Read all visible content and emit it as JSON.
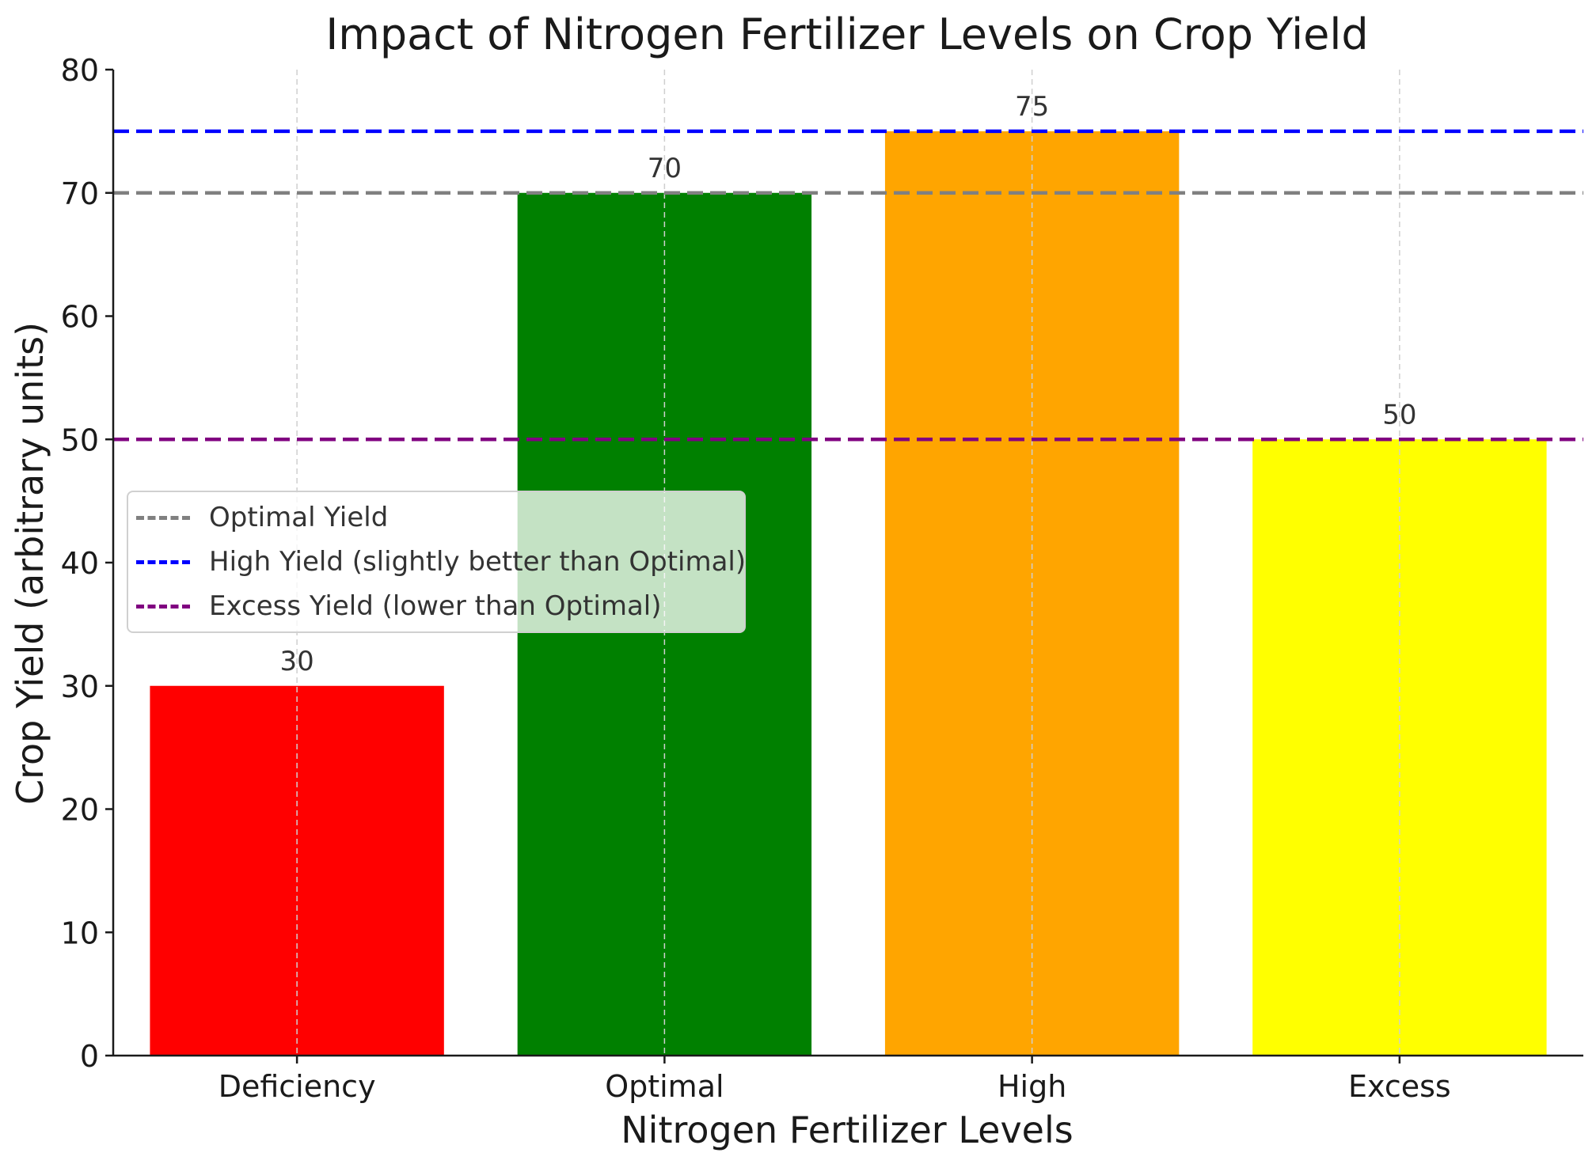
{
  "chart_data": {
    "type": "bar",
    "title": "Impact of Nitrogen Fertilizer Levels on Crop Yield",
    "xlabel": "Nitrogen Fertilizer Levels",
    "ylabel": "Crop Yield (arbitrary units)",
    "categories": [
      "Deficiency",
      "Optimal",
      "High",
      "Excess"
    ],
    "values": [
      30,
      70,
      75,
      50
    ],
    "value_labels": [
      "30",
      "70",
      "75",
      "50"
    ],
    "bar_colors": [
      "#ff0000",
      "#008000",
      "#ffa500",
      "#ffff00"
    ],
    "ylim": [
      0,
      80
    ],
    "yticks": [
      0,
      10,
      20,
      30,
      40,
      50,
      60,
      70,
      80
    ],
    "ytick_labels": [
      "0",
      "10",
      "20",
      "30",
      "40",
      "50",
      "60",
      "70",
      "80"
    ],
    "grid": "x-axis, dashed",
    "reference_lines": [
      {
        "name": "Optimal Yield",
        "value": 70,
        "color": "#808080",
        "style": "dashed"
      },
      {
        "name": "High Yield (slightly better than Optimal)",
        "value": 75,
        "color": "#0000ff",
        "style": "dashed"
      },
      {
        "name": "Excess Yield (lower than Optimal)",
        "value": 50,
        "color": "#800080",
        "style": "dashed"
      }
    ],
    "legend_position": "center-left"
  }
}
